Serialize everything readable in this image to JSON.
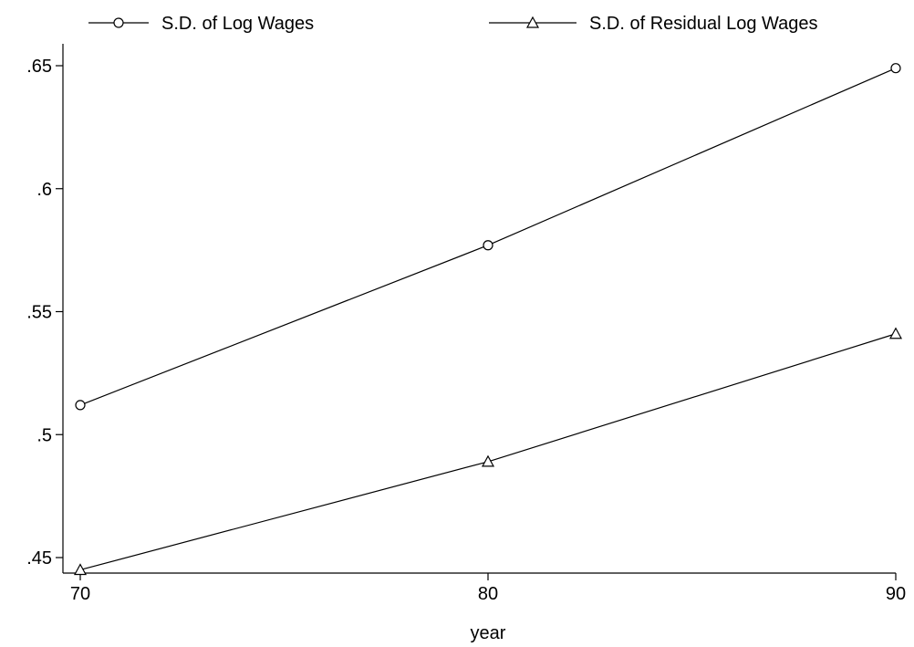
{
  "chart_data": {
    "type": "line",
    "x": [
      70,
      80,
      90
    ],
    "xlabel": "year",
    "ylabel": "",
    "xlim": [
      70,
      90
    ],
    "ylim": [
      0.445,
      0.65
    ],
    "xticks": [
      "70",
      "80",
      "90"
    ],
    "yticks": [
      ".45",
      ".5",
      ".55",
      ".6",
      ".65"
    ],
    "ytick_values": [
      0.45,
      0.5,
      0.55,
      0.6,
      0.65
    ],
    "grid": false,
    "legend_position": "top",
    "series": [
      {
        "name": "S.D. of Log Wages",
        "marker": "circle",
        "values": [
          0.512,
          0.577,
          0.649
        ]
      },
      {
        "name": "S.D. of Residual Log Wages",
        "marker": "triangle",
        "values": [
          0.445,
          0.489,
          0.541
        ]
      }
    ]
  }
}
